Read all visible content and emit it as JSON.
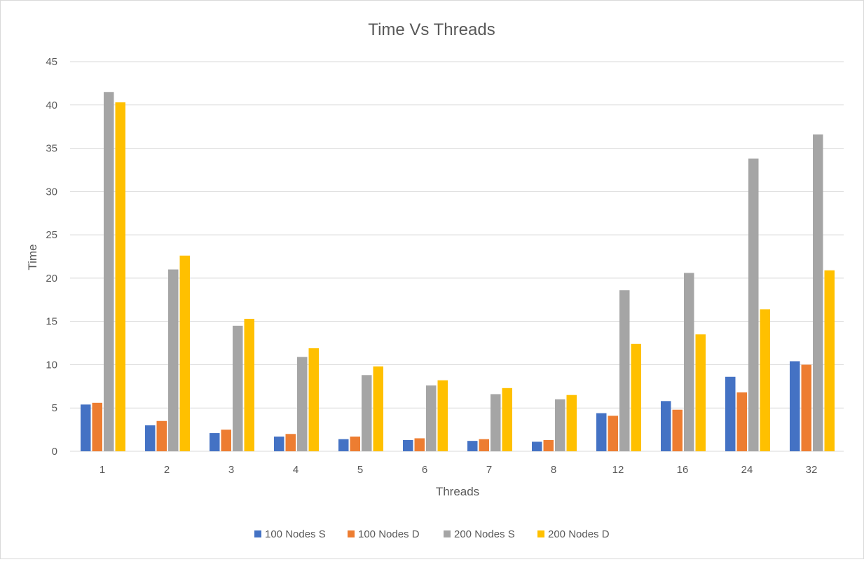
{
  "chart_data": {
    "type": "bar",
    "title": "Time Vs Threads",
    "xlabel": "Threads",
    "ylabel": "Time",
    "categories": [
      "1",
      "2",
      "3",
      "4",
      "5",
      "6",
      "7",
      "8",
      "12",
      "16",
      "24",
      "32"
    ],
    "ylim": [
      0,
      45
    ],
    "yticks": [
      0,
      5,
      10,
      15,
      20,
      25,
      30,
      35,
      40,
      45
    ],
    "grid": true,
    "legend_position": "bottom",
    "series": [
      {
        "name": "100 Nodes S",
        "color": "#4472C4",
        "values": [
          5.4,
          3.0,
          2.1,
          1.7,
          1.4,
          1.3,
          1.2,
          1.1,
          4.4,
          5.8,
          8.6,
          10.4
        ]
      },
      {
        "name": "100 Nodes D",
        "color": "#ED7D31",
        "values": [
          5.6,
          3.5,
          2.5,
          2.0,
          1.7,
          1.5,
          1.4,
          1.3,
          4.1,
          4.8,
          6.8,
          10.0
        ]
      },
      {
        "name": "200 Nodes S",
        "color": "#A5A5A5",
        "values": [
          41.5,
          21.0,
          14.5,
          10.9,
          8.8,
          7.6,
          6.6,
          6.0,
          18.6,
          20.6,
          33.8,
          36.6
        ]
      },
      {
        "name": "200 Nodes D",
        "color": "#FFC000",
        "values": [
          40.3,
          22.6,
          15.3,
          11.9,
          9.8,
          8.2,
          7.3,
          6.5,
          12.4,
          13.5,
          16.4,
          20.9
        ]
      }
    ]
  }
}
